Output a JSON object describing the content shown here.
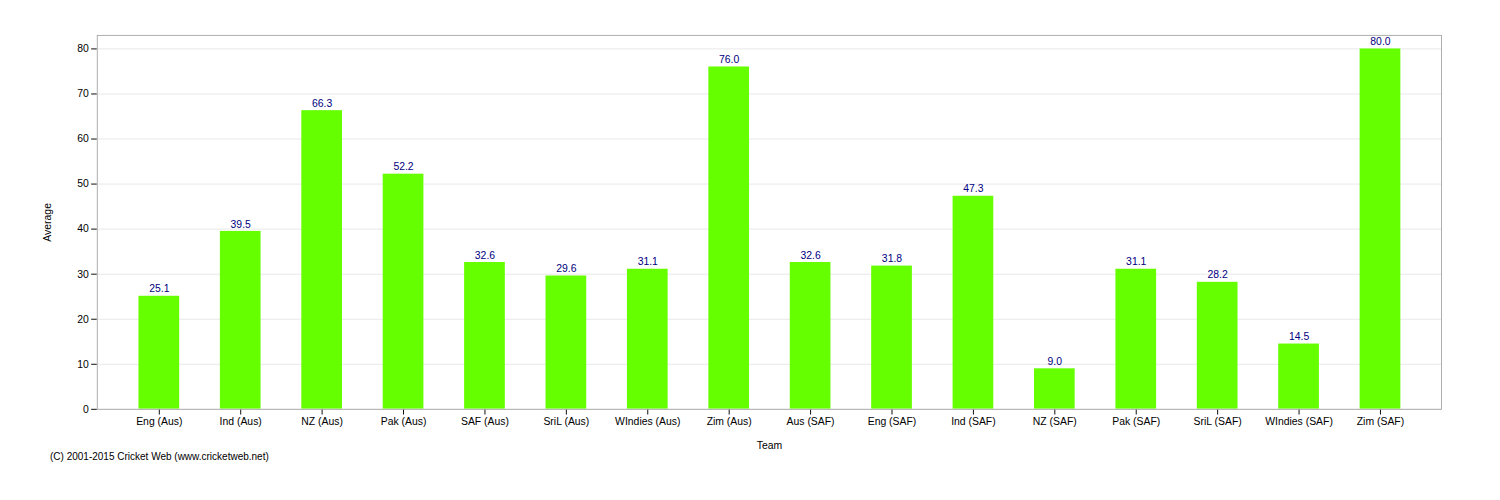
{
  "chart_data": {
    "type": "bar",
    "categories": [
      "Eng (Aus)",
      "Ind (Aus)",
      "NZ (Aus)",
      "Pak (Aus)",
      "SAF (Aus)",
      "SriL (Aus)",
      "WIndies (Aus)",
      "Zim (Aus)",
      "Aus (SAF)",
      "Eng (SAF)",
      "Ind (SAF)",
      "NZ (SAF)",
      "Pak (SAF)",
      "SriL (SAF)",
      "WIndies (SAF)",
      "Zim (SAF)"
    ],
    "values": [
      25.1,
      39.5,
      66.3,
      52.2,
      32.6,
      29.6,
      31.1,
      76.0,
      32.6,
      31.8,
      47.3,
      9.0,
      31.1,
      28.2,
      14.5,
      80.0
    ],
    "value_labels": [
      "25.1",
      "39.5",
      "66.3",
      "52.2",
      "32.6",
      "29.6",
      "31.1",
      "76.0",
      "32.6",
      "31.8",
      "47.3",
      "9.0",
      "31.1",
      "28.2",
      "14.5",
      "80.0"
    ],
    "color": "#66ff00",
    "xlabel": "Team",
    "ylabel": "Average",
    "ylim": [
      0,
      83
    ],
    "yticks": [
      0,
      10,
      20,
      30,
      40,
      50,
      60,
      70,
      80
    ],
    "grid": true,
    "data_labels": true,
    "caption": "(C) 2001-2015 Cricket Web (www.cricketweb.net)"
  }
}
